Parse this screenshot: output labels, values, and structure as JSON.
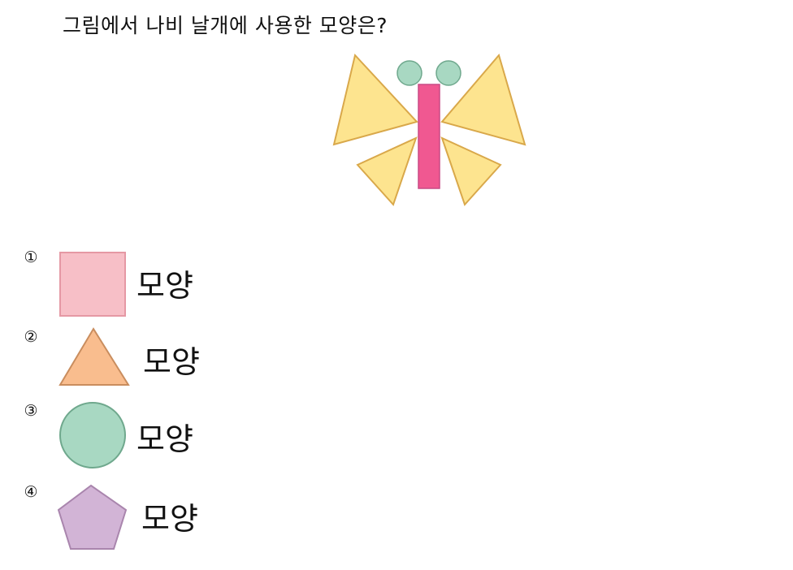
{
  "question": "그림에서 나비 날개에 사용한 모양은?",
  "choices": [
    {
      "number": "①",
      "shape_icon": "square-icon",
      "label": "모양",
      "color": "#f7bfc7"
    },
    {
      "number": "②",
      "shape_icon": "triangle-icon",
      "label": "모양",
      "color": "#f9bd8e"
    },
    {
      "number": "③",
      "shape_icon": "circle-icon",
      "label": "모양",
      "color": "#a8d8c2"
    },
    {
      "number": "④",
      "shape_icon": "pentagon-icon",
      "label": "모양",
      "color": "#d2b4d6"
    }
  ],
  "colors": {
    "wing_fill": "#fde48f",
    "wing_stroke": "#d9a84a",
    "body_fill": "#f05891",
    "head_fill": "#a8d8c2"
  }
}
